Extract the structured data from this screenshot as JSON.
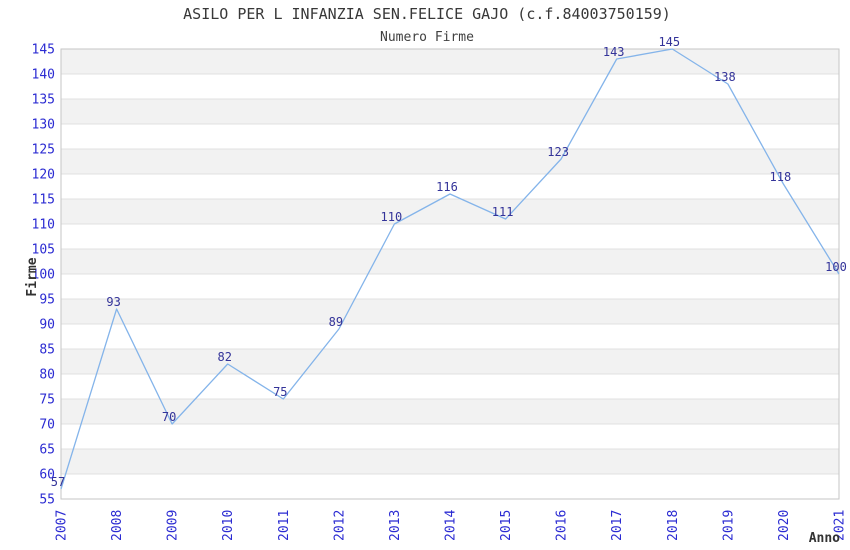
{
  "chart_data": {
    "type": "line",
    "title": "ASILO PER L INFANZIA SEN.FELICE GAJO (c.f.84003750159)",
    "subtitle": "Numero Firme",
    "xlabel": "Anno",
    "ylabel": "Firme",
    "categories": [
      "2007",
      "2008",
      "2009",
      "2010",
      "2011",
      "2012",
      "2013",
      "2014",
      "2015",
      "2016",
      "2017",
      "2018",
      "2019",
      "2020",
      "2021"
    ],
    "values": [
      57,
      93,
      70,
      82,
      75,
      89,
      110,
      116,
      111,
      123,
      143,
      145,
      138,
      118,
      100
    ],
    "ylim": [
      55,
      145
    ],
    "ytick_step": 5,
    "grid": true,
    "legend": "none",
    "colors": {
      "line": "#84b4ea",
      "data_label": "#333399",
      "tick_label": "#2b2bd2",
      "band": "#f2f2f2",
      "gridline": "#e0e0e0",
      "plot_border": "#c6c6c6",
      "title": "#383838",
      "axis_title": "#333333",
      "background": "#ffffff"
    }
  }
}
